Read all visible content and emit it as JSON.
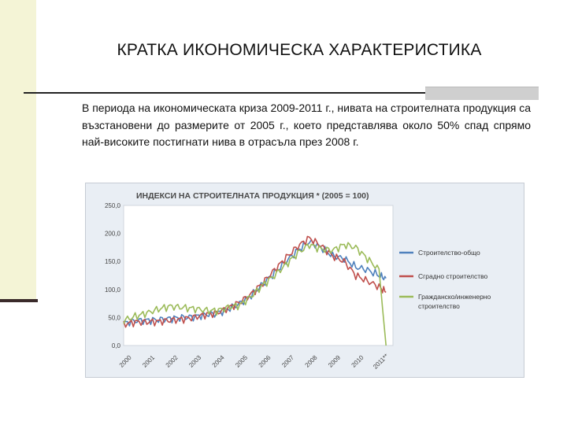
{
  "slide": {
    "title": "КРАТКА ИКОНОМИЧЕСКА ХАРАКТЕРИСТИКА",
    "body": "В периода на икономическата криза 2009-2011 г., нивата на строителната продукция са възстановени до размерите от 2005 г., което представлява около 50% спад спрямо най-високите постигнати нива в отрасъла през 2008 г."
  },
  "chart_data": {
    "type": "line",
    "title": "ИНДЕКСИ НА СТРОИТЕЛНАТА ПРОДУКЦИЯ * (2005 = 100)",
    "xlabel": "",
    "ylabel": "",
    "ylim": [
      0,
      250
    ],
    "yticks": [
      "0,0",
      "50,0",
      "100,0",
      "150,0",
      "200,0",
      "250,0"
    ],
    "xticks": [
      "2000",
      "2001",
      "2002",
      "2003",
      "2004",
      "2005",
      "2006",
      "2007",
      "2008",
      "2009",
      "2010",
      "2011**"
    ],
    "grid": false,
    "legend_position": "right",
    "x": [
      2000,
      2000.5,
      2001,
      2001.5,
      2002,
      2002.5,
      2003,
      2003.5,
      2004,
      2004.5,
      2005,
      2005.5,
      2006,
      2006.5,
      2007,
      2007.5,
      2008,
      2008.5,
      2009,
      2009.5,
      2010,
      2010.5,
      2011,
      2011.3
    ],
    "series": [
      {
        "name": "Строителство-общо",
        "color": "#4f81bd",
        "values": [
          40,
          44,
          45,
          46,
          48,
          50,
          51,
          55,
          57,
          65,
          75,
          90,
          110,
          130,
          150,
          170,
          185,
          175,
          160,
          155,
          140,
          135,
          125,
          120
        ]
      },
      {
        "name": "Сградно строителство",
        "color": "#c0504d",
        "values": [
          38,
          42,
          42,
          43,
          45,
          47,
          50,
          55,
          58,
          67,
          77,
          92,
          112,
          135,
          157,
          177,
          192,
          178,
          160,
          150,
          125,
          115,
          105,
          95
        ]
      },
      {
        "name": "Гражданско/инженерно строителство",
        "color": "#9bbb59",
        "values": [
          45,
          52,
          58,
          65,
          70,
          68,
          66,
          63,
          62,
          68,
          72,
          88,
          108,
          125,
          145,
          165,
          180,
          172,
          170,
          180,
          175,
          155,
          135,
          0
        ]
      }
    ]
  }
}
